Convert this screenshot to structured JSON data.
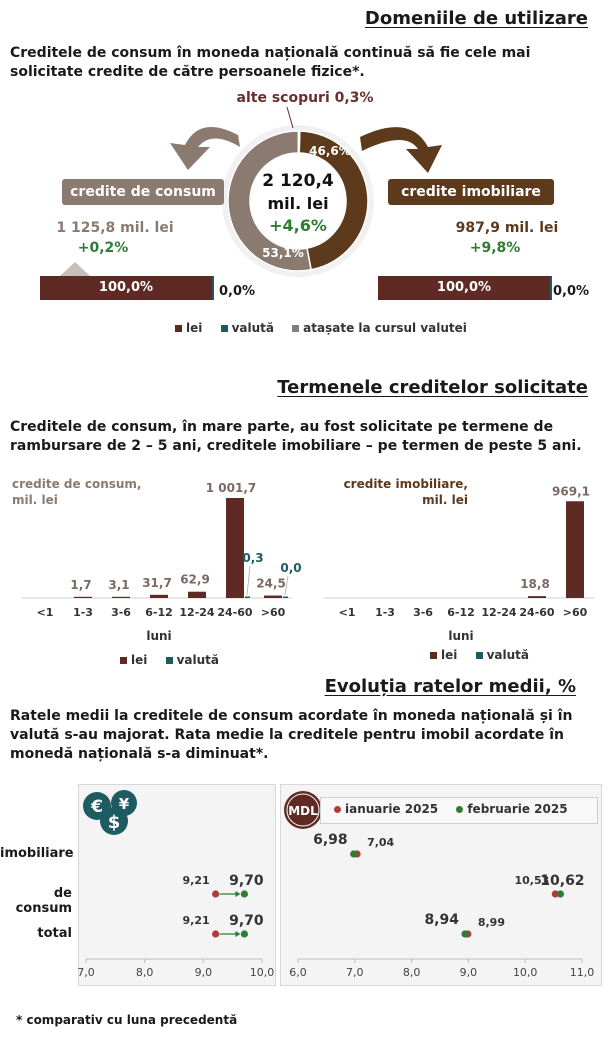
{
  "section1": {
    "title": "Domeniile de utilizare",
    "text": "Creditele de consum în moneda națională continuă să fie cele mai solicitate credite de către persoanele fizice*.",
    "donut": {
      "center_value": "2 120,4",
      "center_unit": "mil. lei",
      "center_change": "+4,6%",
      "slices": [
        {
          "label": "credite imobiliare",
          "value": 46.6,
          "text": "46,6%",
          "color": "#5e3a1c"
        },
        {
          "label": "credite de consum",
          "value": 53.1,
          "text": "53,1%",
          "color": "#8b7a70"
        },
        {
          "label": "alte scopuri",
          "value": 0.3,
          "text": "alte scopuri 0,3%",
          "color": "#6b2e2a"
        }
      ]
    },
    "consum": {
      "label": "credite de consum",
      "amount": "1 125,8 mil. lei",
      "change": "+0,2%",
      "lei_share": "100,0%",
      "other_share": "0,0%",
      "lei_value": 100.0
    },
    "imobiliare": {
      "label": "credite imobiliare",
      "amount": "987,9 mil. lei",
      "change": "+9,8%",
      "lei_share": "100,0%",
      "other_share": "0,0%",
      "lei_value": 100.0
    },
    "legend": [
      {
        "label": "lei",
        "color": "#5e2a23"
      },
      {
        "label": "valută",
        "color": "#1e5b63"
      },
      {
        "label": "atașate la cursul valutei",
        "color": "#808080"
      }
    ]
  },
  "section2": {
    "title": "Termenele creditelor solicitate",
    "text": "Creditele de consum, în mare parte, au fost solicitate pe termene de rambursare de  2 – 5 ani, creditele imobiliare – pe termen de peste 5 ani.",
    "legend": {
      "lei": "lei",
      "valuta": "valută"
    }
  },
  "section3": {
    "title": "Evoluția ratelor medii, %",
    "text": "Ratele medii la creditele de consum acordate în moneda națională și în valută s-au majorat. Rata medie la creditele pentru imobil acordate în monedă națională s-a diminuat*.",
    "legend": {
      "jan": "ianuarie 2025",
      "feb": "februarie 2025"
    },
    "badge_mdl": "MDL",
    "category_labels": [
      "imobiliare",
      "de consum",
      "total"
    ]
  },
  "footnote": "* comparativ cu luna precedentă",
  "chart_data": [
    {
      "type": "pie",
      "title": "",
      "categories": [
        "credite imobiliare",
        "credite de consum",
        "alte scopuri"
      ],
      "values": [
        46.6,
        53.1,
        0.3
      ]
    },
    {
      "type": "bar",
      "title": "credite de consum, mil. lei",
      "xlabel": "luni",
      "categories": [
        "<1",
        "1-3",
        "3-6",
        "6-12",
        "12-24",
        "24-60",
        ">60"
      ],
      "series": [
        {
          "name": "lei",
          "values": [
            0,
            1.7,
            3.1,
            31.7,
            62.9,
            1001.7,
            24.5
          ],
          "labels": [
            "",
            "1,7",
            "3,1",
            "31,7",
            "62,9",
            "1 001,7",
            "24,5"
          ]
        },
        {
          "name": "valută",
          "values": [
            0,
            0,
            0,
            0,
            0,
            0.3,
            0.0
          ],
          "labels": [
            "",
            "",
            "",
            "",
            "",
            "0,3",
            "0,0"
          ]
        }
      ],
      "ylim": [
        0,
        1001.7
      ]
    },
    {
      "type": "bar",
      "title": "credite imobiliare, mil. lei",
      "xlabel": "luni",
      "categories": [
        "<1",
        "1-3",
        "3-6",
        "6-12",
        "12-24",
        "24-60",
        ">60"
      ],
      "series": [
        {
          "name": "lei",
          "values": [
            0,
            0,
            0,
            0,
            0,
            18.8,
            969.1
          ],
          "labels": [
            "",
            "",
            "",
            "",
            "",
            "18,8",
            "969,1"
          ]
        },
        {
          "name": "valută",
          "values": [
            0,
            0,
            0,
            0,
            0,
            0,
            0
          ],
          "labels": [
            "",
            "",
            "",
            "",
            "",
            "",
            ""
          ]
        }
      ],
      "ylim": [
        0,
        1001.7
      ]
    },
    {
      "type": "scatter",
      "title": "valută",
      "categories": [
        "imobiliare",
        "de consum",
        "total"
      ],
      "series": [
        {
          "name": "ianuarie 2025",
          "values": [
            null,
            9.21,
            9.21
          ],
          "labels": [
            "",
            "9,21",
            "9,21"
          ]
        },
        {
          "name": "februarie 2025",
          "values": [
            null,
            9.7,
            9.7
          ],
          "labels": [
            "",
            "9,70",
            "9,70"
          ]
        }
      ],
      "xlim": [
        7.0,
        10.0
      ],
      "ticks": [
        "7,0",
        "8,0",
        "9,0",
        "10,0"
      ]
    },
    {
      "type": "scatter",
      "title": "MDL",
      "categories": [
        "imobiliare",
        "de consum",
        "total"
      ],
      "series": [
        {
          "name": "ianuarie 2025",
          "values": [
            7.04,
            10.53,
            8.99
          ],
          "labels": [
            "7,04",
            "10,53",
            "8,99"
          ]
        },
        {
          "name": "februarie 2025",
          "values": [
            6.98,
            10.62,
            8.94
          ],
          "labels": [
            "6,98",
            "10,62",
            "8,94"
          ]
        }
      ],
      "xlim": [
        6.0,
        11.0
      ],
      "ticks": [
        "6,0",
        "7,0",
        "8,0",
        "9,0",
        "10,0",
        "11,0"
      ]
    }
  ]
}
